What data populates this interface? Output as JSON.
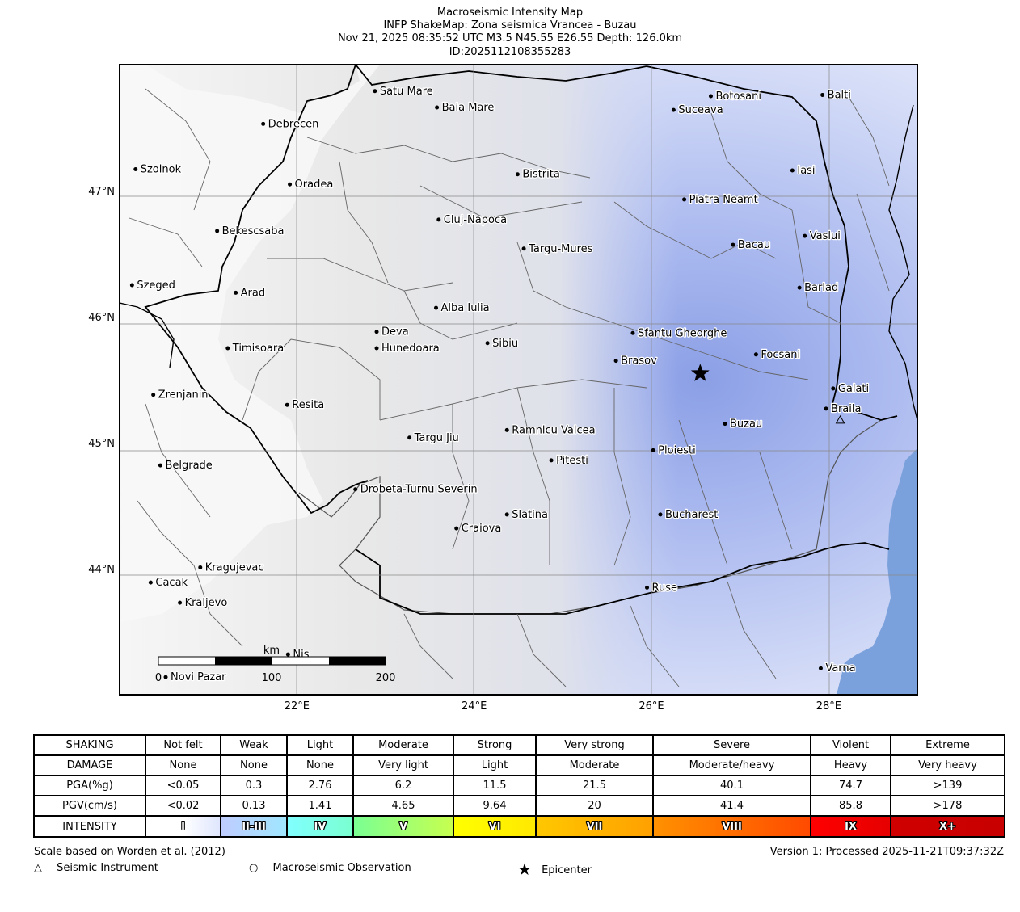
{
  "header": {
    "line1": "Macroseismic Intensity Map",
    "line2": "INFP ShakeMap: Zona seismica Vrancea - Buzau",
    "line3": "Nov 21, 2025 08:35:52 UTC M3.5 N45.55 E26.55 Depth: 126.0km",
    "line4": "ID:2025112108355283"
  },
  "map": {
    "lon_range": [
      20.0,
      29.0
    ],
    "lat_range": [
      43.0,
      48.0
    ],
    "lon_ticks": [
      {
        "value": 22,
        "label": "22°E"
      },
      {
        "value": 24,
        "label": "24°E"
      },
      {
        "value": 26,
        "label": "26°E"
      },
      {
        "value": 28,
        "label": "28°E"
      }
    ],
    "lat_ticks": [
      {
        "value": 47,
        "label": "47°N"
      },
      {
        "value": 46,
        "label": "46°N"
      },
      {
        "value": 45,
        "label": "45°N"
      },
      {
        "value": 44,
        "label": "44°N"
      }
    ],
    "epicenter": {
      "lon": 26.55,
      "lat": 45.55,
      "icon": "star-icon"
    },
    "cities": [
      {
        "name": "Satu Mare",
        "lon": 22.88,
        "lat": 47.79
      },
      {
        "name": "Baia Mare",
        "lon": 23.58,
        "lat": 47.66
      },
      {
        "name": "Botosani",
        "lon": 26.67,
        "lat": 47.75
      },
      {
        "name": "Balti",
        "lon": 27.93,
        "lat": 47.76
      },
      {
        "name": "Suceava",
        "lon": 26.25,
        "lat": 47.64
      },
      {
        "name": "Debrecen",
        "lon": 21.62,
        "lat": 47.53
      },
      {
        "name": "Szolnok",
        "lon": 20.18,
        "lat": 47.17
      },
      {
        "name": "Bistrita",
        "lon": 24.49,
        "lat": 47.13
      },
      {
        "name": "Iasi",
        "lon": 27.59,
        "lat": 47.16
      },
      {
        "name": "Oradea",
        "lon": 21.92,
        "lat": 47.05
      },
      {
        "name": "Piatra Neamt",
        "lon": 26.37,
        "lat": 46.93
      },
      {
        "name": "Cluj-Napoca",
        "lon": 23.6,
        "lat": 46.77
      },
      {
        "name": "Bekescsaba",
        "lon": 21.1,
        "lat": 46.68
      },
      {
        "name": "Vaslui",
        "lon": 27.73,
        "lat": 46.64
      },
      {
        "name": "Bacau",
        "lon": 26.92,
        "lat": 46.57
      },
      {
        "name": "Targu-Mures",
        "lon": 24.56,
        "lat": 46.54
      },
      {
        "name": "Szeged",
        "lon": 20.14,
        "lat": 46.25
      },
      {
        "name": "Barlad",
        "lon": 27.67,
        "lat": 46.23
      },
      {
        "name": "Arad",
        "lon": 21.31,
        "lat": 46.19
      },
      {
        "name": "Alba Iulia",
        "lon": 23.57,
        "lat": 46.07
      },
      {
        "name": "Deva",
        "lon": 22.9,
        "lat": 45.88
      },
      {
        "name": "Sfantu Gheorghe",
        "lon": 25.79,
        "lat": 45.87
      },
      {
        "name": "Sibiu",
        "lon": 24.15,
        "lat": 45.79
      },
      {
        "name": "Timisoara",
        "lon": 21.22,
        "lat": 45.75
      },
      {
        "name": "Hunedoara",
        "lon": 22.9,
        "lat": 45.75
      },
      {
        "name": "Focsani",
        "lon": 27.18,
        "lat": 45.7
      },
      {
        "name": "Brasov",
        "lon": 25.6,
        "lat": 45.65
      },
      {
        "name": "Galati",
        "lon": 28.05,
        "lat": 45.43
      },
      {
        "name": "Zrenjanin",
        "lon": 20.38,
        "lat": 45.38
      },
      {
        "name": "Resita",
        "lon": 21.89,
        "lat": 45.3
      },
      {
        "name": "Braila",
        "lon": 27.97,
        "lat": 45.27
      },
      {
        "name": "Buzau",
        "lon": 26.83,
        "lat": 45.15
      },
      {
        "name": "Ramnicu Valcea",
        "lon": 24.37,
        "lat": 45.1
      },
      {
        "name": "Targu Jiu",
        "lon": 23.27,
        "lat": 45.04
      },
      {
        "name": "Ploiesti",
        "lon": 26.02,
        "lat": 44.94
      },
      {
        "name": "Pitesti",
        "lon": 24.87,
        "lat": 44.86
      },
      {
        "name": "Belgrade",
        "lon": 20.46,
        "lat": 44.82
      },
      {
        "name": "Drobeta-Turnu Severin",
        "lon": 22.66,
        "lat": 44.63
      },
      {
        "name": "Slatina",
        "lon": 24.37,
        "lat": 44.43
      },
      {
        "name": "Bucharest",
        "lon": 26.1,
        "lat": 44.43
      },
      {
        "name": "Craiova",
        "lon": 23.8,
        "lat": 44.32
      },
      {
        "name": "Kragujevac",
        "lon": 20.91,
        "lat": 44.01
      },
      {
        "name": "Cacak",
        "lon": 20.35,
        "lat": 43.89
      },
      {
        "name": "Ruse",
        "lon": 25.95,
        "lat": 43.85
      },
      {
        "name": "Kraljevo",
        "lon": 20.68,
        "lat": 43.73
      },
      {
        "name": "Varna",
        "lon": 27.91,
        "lat": 43.21
      },
      {
        "name": "Novi Pazar",
        "lon": 20.52,
        "lat": 43.14
      },
      {
        "name": "Nis",
        "lon": 21.9,
        "lat": 43.32
      }
    ],
    "stations": [
      {
        "lon": 28.13,
        "lat": 45.18
      }
    ],
    "scalebar": {
      "unit": "km",
      "labels": [
        "0",
        "100",
        "200"
      ]
    }
  },
  "legend": {
    "rows": [
      {
        "label": "SHAKING",
        "cells": [
          "Not felt",
          "Weak",
          "Light",
          "Moderate",
          "Strong",
          "Very strong",
          "Severe",
          "Violent",
          "Extreme"
        ]
      },
      {
        "label": "DAMAGE",
        "cells": [
          "None",
          "None",
          "None",
          "Very light",
          "Light",
          "Moderate",
          "Moderate/heavy",
          "Heavy",
          "Very heavy"
        ]
      },
      {
        "label": "PGA(%g)",
        "cells": [
          "<0.05",
          "0.3",
          "2.76",
          "6.2",
          "11.5",
          "21.5",
          "40.1",
          "74.7",
          ">139"
        ]
      },
      {
        "label": "PGV(cm/s)",
        "cells": [
          "<0.02",
          "0.13",
          "1.41",
          "4.65",
          "9.64",
          "20",
          "41.4",
          "85.8",
          ">178"
        ]
      }
    ],
    "intensity_label": "INTENSITY",
    "intensity_cells": [
      {
        "label": "I",
        "colors": [
          "#ffffff",
          "#ffffff",
          "#dfe6fe"
        ]
      },
      {
        "label": "II-III",
        "colors": [
          "#bfccff",
          "#a0e6ff"
        ]
      },
      {
        "label": "IV",
        "colors": [
          "#80ffff",
          "#7affd0"
        ]
      },
      {
        "label": "V",
        "colors": [
          "#7aff93",
          "#c7ff4f"
        ]
      },
      {
        "label": "VI",
        "colors": [
          "#ffff00",
          "#ffe800"
        ]
      },
      {
        "label": "VII",
        "colors": [
          "#ffc800",
          "#ffa000"
        ]
      },
      {
        "label": "VIII",
        "colors": [
          "#ff9100",
          "#ff4a00"
        ]
      },
      {
        "label": "IX",
        "colors": [
          "#ff0000",
          "#e60000"
        ]
      },
      {
        "label": "X+",
        "colors": [
          "#d00000",
          "#c80000"
        ]
      }
    ]
  },
  "footer": {
    "scale_note": "Scale based on Worden et al. (2012)",
    "version": "Version 1: Processed 2025-11-21T09:37:32Z",
    "instrument": "Seismic Instrument",
    "observation": "Macroseismic Observation",
    "epicenter": "Epicenter",
    "colors": {
      "water": "#7ba1dc",
      "shaking_blue": "#9aabea",
      "land": "#f6f6f6"
    }
  }
}
